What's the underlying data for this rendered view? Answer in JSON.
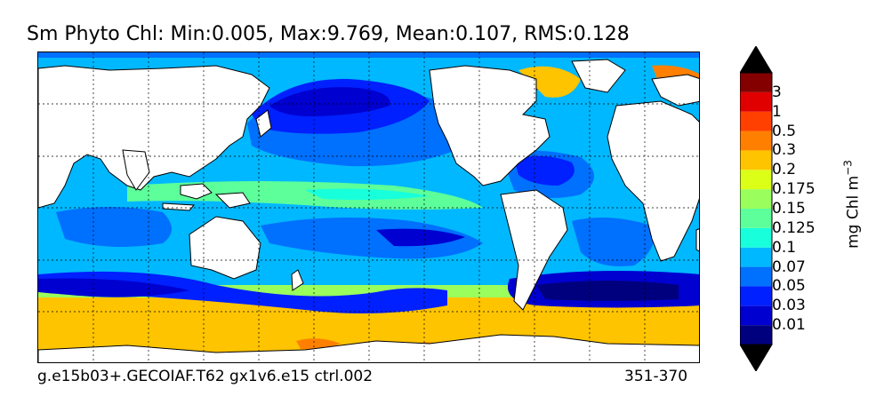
{
  "title": "Sm Phyto Chl: Min:0.005, Max:9.769, Mean:0.107, RMS:0.128",
  "footer_left": "g.e15b03+.GECOIAF.T62 gx1v6.e15 ctrl.002",
  "footer_right": "351-370",
  "colorbar": {
    "units": "mg Chl m",
    "units_exponent": "−3",
    "extend": "both",
    "labels": [
      "0.01",
      "0.03",
      "0.05",
      "0.07",
      "0.1",
      "0.125",
      "0.15",
      "0.175",
      "0.2",
      "0.3",
      "0.5",
      "1",
      "3"
    ],
    "colors": [
      "#00007f",
      "#0000d0",
      "#0020ff",
      "#0070ff",
      "#00b8ff",
      "#18ffdc",
      "#5cff9a",
      "#9aff5c",
      "#dcff18",
      "#ffc400",
      "#ff8000",
      "#ff4000",
      "#e00000",
      "#840000"
    ],
    "over_color": "#000000",
    "under_color": "#000000"
  },
  "map": {
    "land_color": "#ffffff",
    "grid": "on",
    "grid_style": "dashed"
  }
}
